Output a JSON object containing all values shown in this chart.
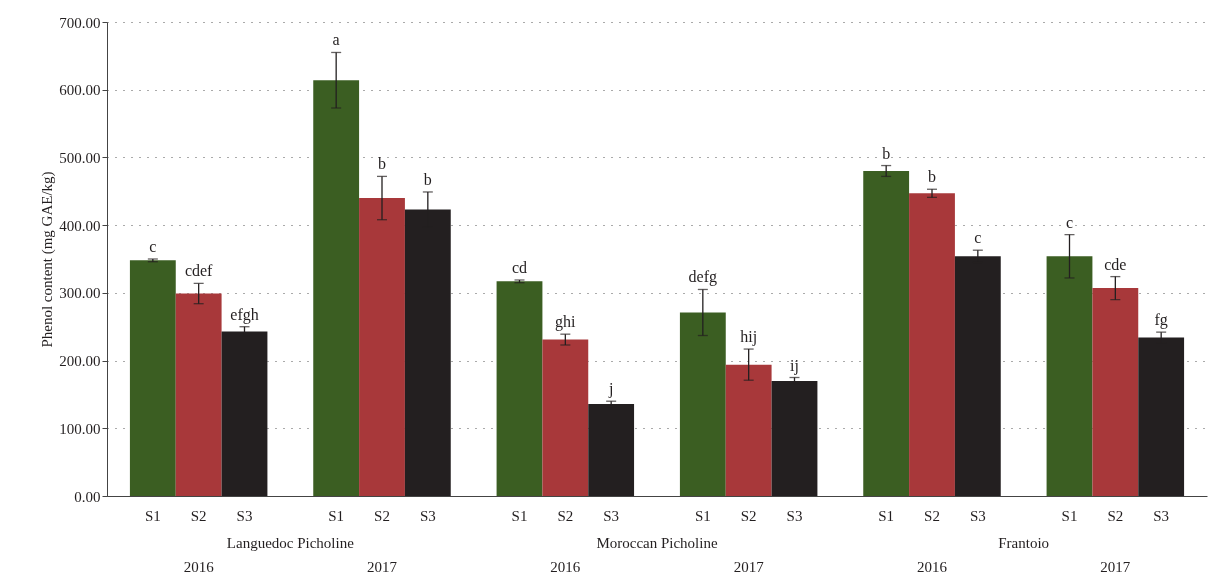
{
  "chart_data": {
    "type": "bar",
    "ylabel": "Phenol content (mg GAE/kg)",
    "categories": [
      "S1",
      "S2",
      "S3",
      "S1",
      "S2",
      "S3",
      "S1",
      "S2",
      "S3",
      "S1",
      "S2",
      "S3",
      "S1",
      "S2",
      "S3",
      "S1",
      "S2",
      "S3"
    ],
    "values": [
      348,
      299,
      243,
      614,
      440,
      423,
      317,
      231,
      136,
      271,
      194,
      170,
      480,
      447,
      354,
      354,
      307,
      234
    ],
    "errors": [
      2,
      15,
      7,
      41,
      32,
      26,
      2,
      8,
      4,
      34,
      23,
      5,
      8,
      6,
      9,
      32,
      17,
      8
    ],
    "value_labels": [
      "c",
      "cdef",
      "efgh",
      "a",
      "b",
      "b",
      "cd",
      "ghi",
      "j",
      "defg",
      "hij",
      "ij",
      "b",
      "b",
      "c",
      "c",
      "cde",
      "fg"
    ],
    "colors": [
      "#3b5e22",
      "#a8383a",
      "#231f20",
      "#3b5e22",
      "#a8383a",
      "#231f20",
      "#3b5e22",
      "#a8383a",
      "#231f20",
      "#3b5e22",
      "#a8383a",
      "#231f20",
      "#3b5e22",
      "#a8383a",
      "#231f20",
      "#3b5e22",
      "#a8383a",
      "#231f20"
    ],
    "ylim": [
      0,
      700
    ],
    "yticks": [
      {
        "value": 0,
        "label": "0.00"
      },
      {
        "value": 100,
        "label": "100.00"
      },
      {
        "value": 200,
        "label": "200.00"
      },
      {
        "value": 300,
        "label": "300.00"
      },
      {
        "value": 400,
        "label": "400.00"
      },
      {
        "value": 500,
        "label": "500.00"
      },
      {
        "value": 600,
        "label": "600.00"
      },
      {
        "value": 700,
        "label": "700.00"
      }
    ],
    "grid": "y",
    "annotations": [
      "Languedoc Picholine",
      "Moroccan Picholine",
      "Frantoio",
      "2016",
      "2017",
      "2016",
      "2017",
      "2016",
      "2017"
    ]
  }
}
